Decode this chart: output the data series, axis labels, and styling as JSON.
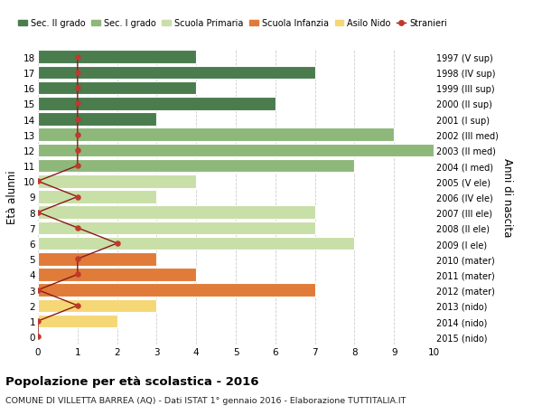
{
  "ages": [
    18,
    17,
    16,
    15,
    14,
    13,
    12,
    11,
    10,
    9,
    8,
    7,
    6,
    5,
    4,
    3,
    2,
    1,
    0
  ],
  "years": [
    "1997 (V sup)",
    "1998 (IV sup)",
    "1999 (III sup)",
    "2000 (II sup)",
    "2001 (I sup)",
    "2002 (III med)",
    "2003 (II med)",
    "2004 (I med)",
    "2005 (V ele)",
    "2006 (IV ele)",
    "2007 (III ele)",
    "2008 (II ele)",
    "2009 (I ele)",
    "2010 (mater)",
    "2011 (mater)",
    "2012 (mater)",
    "2013 (nido)",
    "2014 (nido)",
    "2015 (nido)"
  ],
  "bar_values": [
    4,
    7,
    4,
    6,
    3,
    9,
    10,
    8,
    4,
    3,
    7,
    7,
    8,
    3,
    4,
    7,
    3,
    2,
    0
  ],
  "bar_colors": [
    "#4a7c4e",
    "#4a7c4e",
    "#4a7c4e",
    "#4a7c4e",
    "#4a7c4e",
    "#8db87a",
    "#8db87a",
    "#8db87a",
    "#c8dfa8",
    "#c8dfa8",
    "#c8dfa8",
    "#c8dfa8",
    "#c8dfa8",
    "#e07b39",
    "#e07b39",
    "#e07b39",
    "#f5d776",
    "#f5d776",
    "#f5d776"
  ],
  "stranieri_x": [
    1,
    1,
    1,
    1,
    1,
    1,
    1,
    1,
    0,
    1,
    0,
    1,
    2,
    1,
    1,
    0,
    1,
    0,
    0
  ],
  "legend_labels": [
    "Sec. II grado",
    "Sec. I grado",
    "Scuola Primaria",
    "Scuola Infanzia",
    "Asilo Nido",
    "Stranieri"
  ],
  "legend_colors": [
    "#4a7c4e",
    "#8db87a",
    "#c8dfa8",
    "#e07b39",
    "#f5d776",
    "#c0392b"
  ],
  "ylabel_left": "Età alunni",
  "ylabel_right": "Anni di nascita",
  "title_bold": "Popolazione per età scolastica - 2016",
  "subtitle": "COMUNE DI VILLETTA BARREA (AQ) - Dati ISTAT 1° gennaio 2016 - Elaborazione TUTTITALIA.IT",
  "xlim": [
    0,
    10
  ],
  "bg_color": "#ffffff",
  "grid_color": "#cccccc",
  "stranieri_line_color": "#8b1a1a",
  "stranieri_dot_color": "#c0392b"
}
